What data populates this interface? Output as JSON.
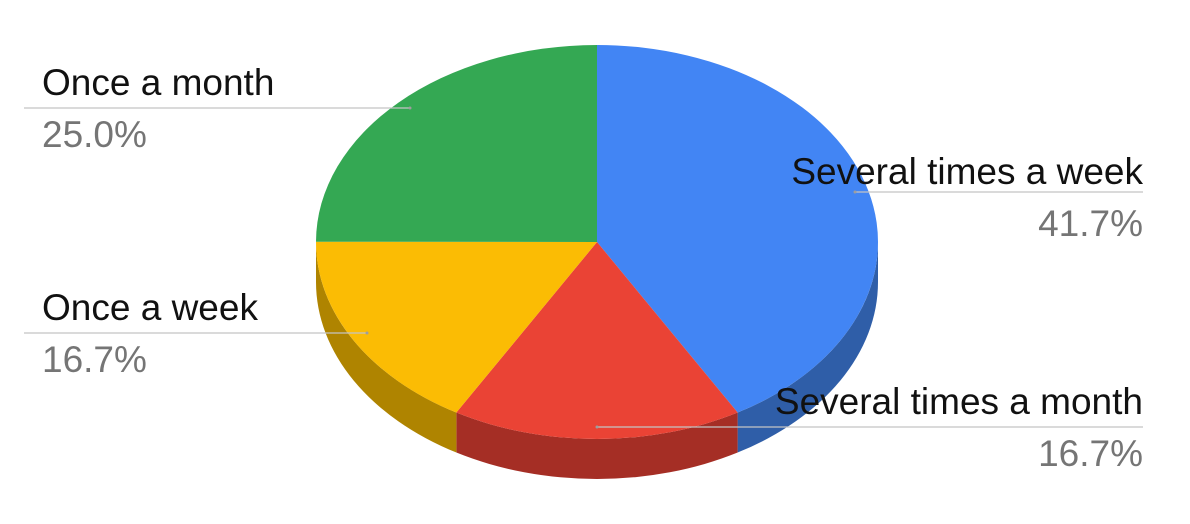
{
  "chart_data": {
    "type": "pie",
    "three_d": true,
    "slices": [
      {
        "label": "Several times a week",
        "value": 41.7,
        "value_label": "41.7%",
        "color": "#4285F4",
        "side_color": "#2F5EA8"
      },
      {
        "label": "Several times a month",
        "value": 16.7,
        "value_label": "16.7%",
        "color": "#EA4335",
        "side_color": "#A52E25"
      },
      {
        "label": "Once a week",
        "value": 16.7,
        "value_label": "16.7%",
        "color": "#FBBC04",
        "side_color": "#AF8400"
      },
      {
        "label": "Once a month",
        "value": 25.0,
        "value_label": "25.0%",
        "color": "#34A853",
        "side_color": "#24763A"
      }
    ],
    "start_angle": "top, clockwise",
    "legend": "none (slice labels with leader lines)"
  }
}
